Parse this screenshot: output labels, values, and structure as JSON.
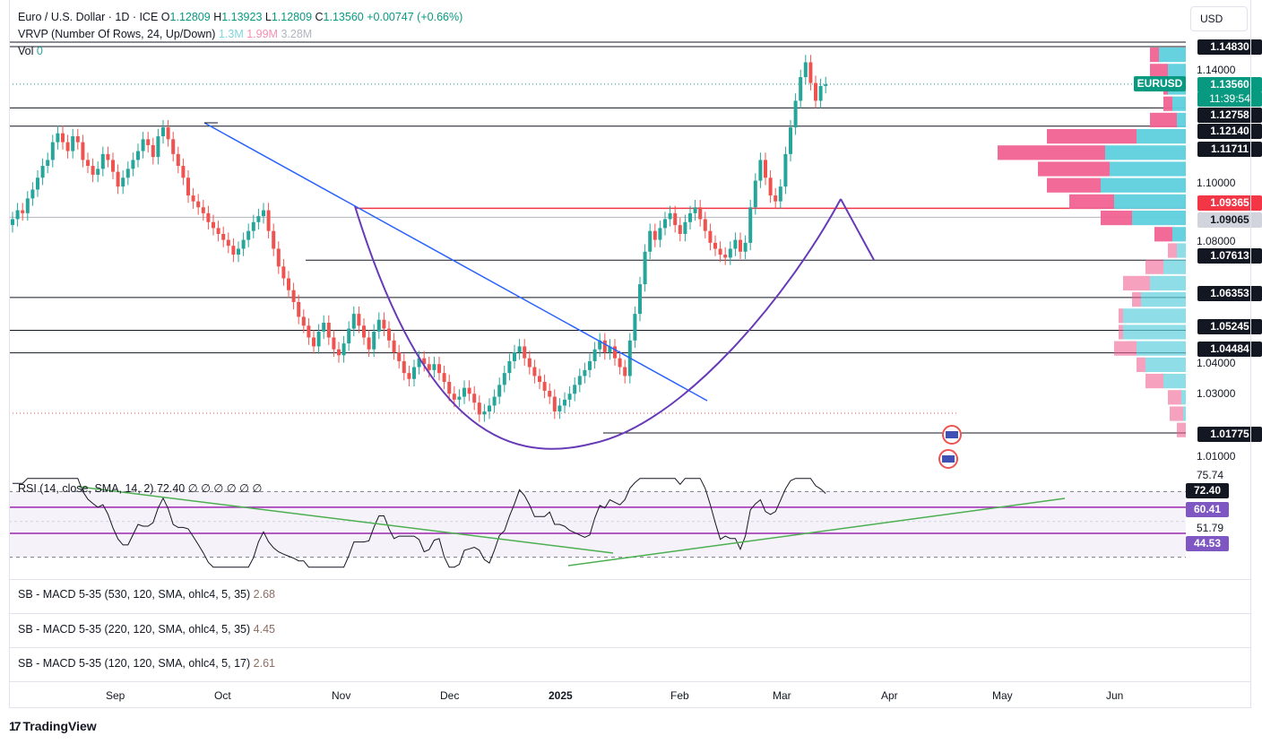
{
  "header": {
    "symbol_title": "Euro / U.S. Dollar · 1D · ICE",
    "open_label": "O",
    "open": "1.12809",
    "high_label": "H",
    "high": "1.13923",
    "low_label": "L",
    "low": "1.12809",
    "close_label": "C",
    "close": "1.13560",
    "change": "+0.00747 (+0.66%)",
    "currency": "USD"
  },
  "vrvp": {
    "title": "VRVP (Number Of Rows, 24, Up/Down)",
    "up": "1.3M",
    "down": "1.99M",
    "total": "3.28M"
  },
  "vol": {
    "title": "Vol",
    "value": "0"
  },
  "symbol_tag": "EURUSD",
  "countdown": "11:39:54",
  "price_labels": {
    "p1": "1.14830",
    "cur": "1.13560",
    "p2": "1.12758",
    "p3": "1.12140",
    "p4": "1.11711",
    "red": "1.09365",
    "gray": "1.09065",
    "p5": "1.07613",
    "p6": "1.06353",
    "p7": "1.05245",
    "p8": "1.04484",
    "p9": "1.01775"
  },
  "price_ticks": [
    "1.14000",
    "1.10000",
    "1.08000",
    "1.04000",
    "1.03000",
    "1.01000"
  ],
  "rsi": {
    "title": "RSI (14, close, SMA, 14, 2)",
    "value": "72.40",
    "extra": "∅ ∅ ∅ ∅ ∅ ∅",
    "top_tick": "75.74",
    "value_label": "72.40",
    "sma_label": "60.41",
    "mid_label": "51.79",
    "low_label": "44.53"
  },
  "macd": [
    {
      "title": "SB - MACD 5-35 (530, 120, SMA, ohlc4, 5, 35)",
      "value": "2.68"
    },
    {
      "title": "SB - MACD 5-35 (220, 120, SMA, ohlc4, 5, 35)",
      "value": "4.45"
    },
    {
      "title": "SB - MACD 5-35 (120, 120, SMA, ohlc4, 5, 17)",
      "value": "2.61"
    }
  ],
  "time_axis": [
    "Sep",
    "Oct",
    "Nov",
    "Dec",
    "2025",
    "Feb",
    "Mar",
    "Apr",
    "May",
    "Jun"
  ],
  "brand": "TradingView",
  "colors": {
    "up": "#26a69a",
    "down": "#ef5350",
    "trend": "#2962ff",
    "curve": "#673ab7",
    "rsi": "#131722",
    "trendline_green": "#4caf50"
  },
  "chart_data": {
    "type": "candlestick",
    "x_range": [
      "2024-08-16",
      "2025-04-17"
    ],
    "y_range": [
      1.005,
      1.152
    ],
    "candles_close": [
      1.09,
      1.093,
      1.092,
      1.097,
      1.1,
      1.104,
      1.108,
      1.11,
      1.116,
      1.119,
      1.116,
      1.113,
      1.118,
      1.116,
      1.11,
      1.108,
      1.105,
      1.107,
      1.112,
      1.11,
      1.106,
      1.101,
      1.104,
      1.107,
      1.11,
      1.113,
      1.117,
      1.115,
      1.111,
      1.118,
      1.121,
      1.117,
      1.112,
      1.108,
      1.104,
      1.098,
      1.096,
      1.094,
      1.092,
      1.089,
      1.087,
      1.085,
      1.083,
      1.081,
      1.078,
      1.08,
      1.083,
      1.086,
      1.089,
      1.091,
      1.093,
      1.086,
      1.08,
      1.074,
      1.07,
      1.066,
      1.062,
      1.057,
      1.054,
      1.05,
      1.047,
      1.052,
      1.055,
      1.05,
      1.046,
      1.044,
      1.048,
      1.053,
      1.058,
      1.054,
      1.05,
      1.046,
      1.052,
      1.056,
      1.053,
      1.049,
      1.045,
      1.042,
      1.038,
      1.036,
      1.04,
      1.043,
      1.041,
      1.039,
      1.041,
      1.038,
      1.035,
      1.031,
      1.029,
      1.03,
      1.033,
      1.031,
      1.028,
      1.024,
      1.025,
      1.027,
      1.03,
      1.034,
      1.038,
      1.042,
      1.045,
      1.047,
      1.043,
      1.04,
      1.037,
      1.035,
      1.032,
      1.03,
      1.025,
      1.027,
      1.029,
      1.031,
      1.034,
      1.037,
      1.039,
      1.042,
      1.046,
      1.049,
      1.045,
      1.047,
      1.043,
      1.04,
      1.037,
      1.049,
      1.058,
      1.068,
      1.079,
      1.086,
      1.083,
      1.087,
      1.09,
      1.092,
      1.088,
      1.085,
      1.089,
      1.092,
      1.094,
      1.09,
      1.086,
      1.082,
      1.08,
      1.078,
      1.077,
      1.08,
      1.083,
      1.079,
      1.082,
      1.094,
      1.103,
      1.11,
      1.104,
      1.098,
      1.096,
      1.101,
      1.112,
      1.121,
      1.13,
      1.138,
      1.143,
      1.136,
      1.13,
      1.135,
      1.1356
    ],
    "vrvp_rows_up": [
      0.3,
      0.2,
      0.2,
      0.15,
      0.1,
      0.55,
      0.9,
      0.85,
      0.95,
      0.8,
      0.6,
      0.15,
      0.1,
      0.25,
      0.4,
      0.5,
      0.7,
      0.7,
      0.55,
      0.45,
      0.25,
      0.05,
      0.03,
      0.0
    ],
    "vrvp_rows_down": [
      0.1,
      0.2,
      0.05,
      0.1,
      0.3,
      1.0,
      1.2,
      0.8,
      0.6,
      0.5,
      0.35,
      0.2,
      0.1,
      0.2,
      0.3,
      0.1,
      0.05,
      0.05,
      0.25,
      0.1,
      0.2,
      0.15,
      0.15,
      0.1
    ],
    "rsi_range": [
      20,
      80
    ],
    "rsi_levels": [
      70,
      60.41,
      51.79,
      44.53,
      30
    ]
  }
}
